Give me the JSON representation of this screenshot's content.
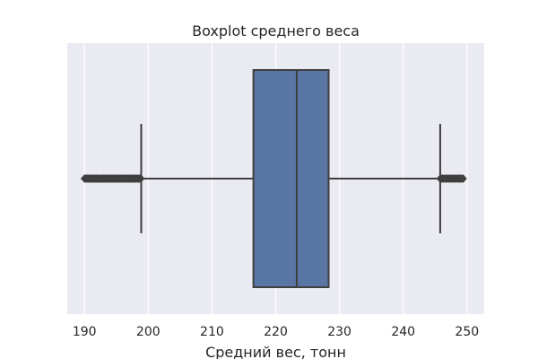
{
  "chart_data": {
    "type": "boxplot",
    "orientation": "horizontal",
    "title": "Boxplot среднего веса",
    "xlabel": "Средний вес, тонн",
    "ylabel": "",
    "xlim": [
      187.3,
      252.7
    ],
    "xticks": [
      190,
      200,
      210,
      220,
      230,
      240,
      250
    ],
    "grid": true,
    "box": {
      "q1": 216.5,
      "median": 223.3,
      "q3": 228.3,
      "whisker_low": 198.9,
      "whisker_high": 245.8
    },
    "outliers_low_range": [
      190.0,
      198.9
    ],
    "outliers_high_range": [
      245.8,
      249.5
    ],
    "colors": {
      "box_fill": "#5975a4",
      "line": "#3f3f3f",
      "axes_bg": "#eaeaf2",
      "grid": "#ffffff"
    }
  }
}
